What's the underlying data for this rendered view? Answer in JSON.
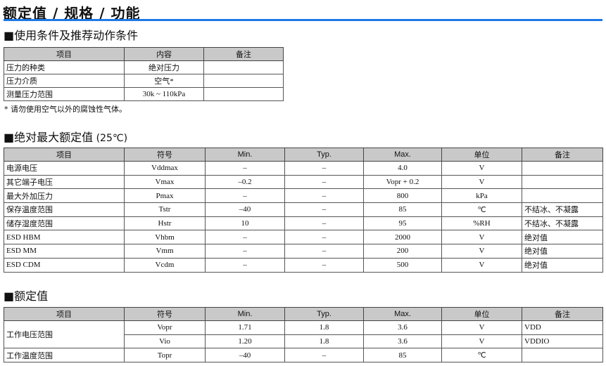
{
  "title": "额定值 / 规格 / 功能",
  "accent_color": "#1e78e6",
  "section1": {
    "heading": "■使用条件及推荐动作条件",
    "headers": [
      "项目",
      "内容",
      "备注"
    ],
    "rows": [
      [
        "压力的种类",
        "绝对压力",
        ""
      ],
      [
        "压力介质",
        "空气*",
        ""
      ],
      [
        "测量压力范围",
        "30k ~ 110kPa",
        ""
      ]
    ],
    "note": "*  请勿使用空气以外的腐蚀性气体。"
  },
  "section2": {
    "heading": "■绝对最大额定值",
    "heading_suffix": " (25℃)",
    "headers": [
      "项目",
      "符号",
      "Min.",
      "Typ.",
      "Max.",
      "单位",
      "备注"
    ],
    "rows": [
      [
        "电源电压",
        "Vddmax",
        "–",
        "–",
        "4.0",
        "V",
        ""
      ],
      [
        "其它端子电压",
        "Vmax",
        "–0.2",
        "–",
        "Vopr + 0.2",
        "V",
        ""
      ],
      [
        "最大外加压力",
        "Pmax",
        "–",
        "–",
        "800",
        "kPa",
        ""
      ],
      [
        "保存温度范围",
        "Tstr",
        "–40",
        "–",
        "85",
        "℃",
        "不结冰、不凝露"
      ],
      [
        "储存湿度范围",
        "Hstr",
        "10",
        "–",
        "95",
        "%RH",
        "不结冰、不凝露"
      ],
      [
        "ESD HBM",
        "Vhbm",
        "–",
        "–",
        "2000",
        "V",
        "绝对值"
      ],
      [
        "ESD MM",
        "Vmm",
        "–",
        "–",
        "200",
        "V",
        "绝对值"
      ],
      [
        "ESD CDM",
        "Vcdm",
        "–",
        "–",
        "500",
        "V",
        "绝对值"
      ]
    ]
  },
  "section3": {
    "heading": "■额定值",
    "headers": [
      "项目",
      "符号",
      "Min.",
      "Typ.",
      "Max.",
      "单位",
      "备注"
    ],
    "group_label": "工作电压范围",
    "rows": [
      [
        "Vopr",
        "1.71",
        "1.8",
        "3.6",
        "V",
        "VDD"
      ],
      [
        "Vio",
        "1.20",
        "1.8",
        "3.6",
        "V",
        "VDDIO"
      ]
    ],
    "last_row": [
      "工作温度范围",
      "Topr",
      "–40",
      "–",
      "85",
      "℃",
      ""
    ]
  }
}
